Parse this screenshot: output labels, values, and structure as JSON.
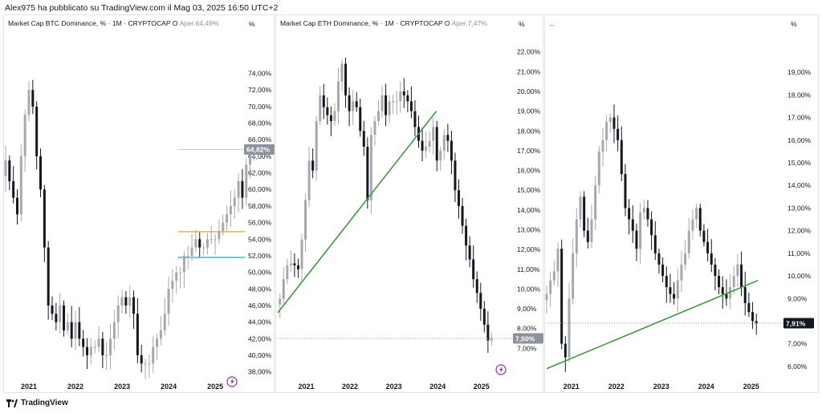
{
  "header": {
    "publish_line": "Alex975 ha pubblicato su TradingView.com il Mag 03, 2025 16:50 UTC+2"
  },
  "footer": {
    "brand": "TradingView"
  },
  "colors": {
    "up": "#a6a8ad",
    "down": "#131722",
    "grid_label": "#131722",
    "trend": "#3d9a3d",
    "orange": "#f5a623",
    "cyan": "#1bc8c8",
    "purple": "#9c27b0"
  },
  "panels": [
    {
      "legend_main": "Market Cap BTC Dominance, % · 1M · CRYPTOCAP",
      "legend_ohlc": "O ",
      "legend_value": "Aper.64,49%",
      "pct_label": "%",
      "price_badge": "64,82%",
      "icon": "lightning-icon"
    },
    {
      "legend_main": "Market Cap ETH Dominance, % · 1M · CRYPTOCAP",
      "legend_ohlc": "O ",
      "legend_value": "Aper.7,47%",
      "pct_label": "%",
      "price_badge": "7,50%",
      "icon": "lightning-icon"
    },
    {
      "legend_main": "...",
      "legend_ohlc": "",
      "legend_value": "",
      "pct_label": "%",
      "price_badge": "7,91%",
      "icon": ""
    }
  ],
  "chart_data": [
    {
      "type": "candlestick",
      "title": "Market Cap BTC Dominance, % · 1M · CRYPTOCAP",
      "ylabel": "%",
      "ylim": [
        37.0,
        78.5
      ],
      "y_ticks": [
        "38,00%",
        "40,00%",
        "42,00%",
        "44,00%",
        "46,00%",
        "48,00%",
        "50,00%",
        "52,00%",
        "54,00%",
        "56,00%",
        "58,00%",
        "60,00%",
        "62,00%",
        "64,00%",
        "66,00%",
        "68,00%",
        "70,00%",
        "72,00%",
        "74,00%"
      ],
      "y_tick_values": [
        38,
        40,
        42,
        44,
        46,
        48,
        50,
        52,
        54,
        56,
        58,
        60,
        62,
        64,
        66,
        68,
        70,
        72,
        74
      ],
      "x_ticks": [
        "2021",
        "2022",
        "2023",
        "2024",
        "2025"
      ],
      "x_tick_values": [
        2021,
        2022,
        2023,
        2024,
        2025
      ],
      "x_range": [
        2020.5,
        2025.6
      ],
      "last_price": 64.82,
      "hlines": [
        {
          "value": 54.9,
          "color_key": "orange"
        },
        {
          "value": 51.8,
          "color_key": "cyan"
        }
      ],
      "closes": [
        63.5,
        61,
        59,
        57,
        64,
        69,
        72,
        70,
        64,
        60,
        53,
        46,
        45,
        44,
        46,
        43,
        44,
        42,
        44,
        42,
        41,
        40,
        41,
        41,
        42,
        40,
        40,
        42,
        44,
        46,
        47,
        46,
        47,
        45,
        40,
        39,
        39,
        39,
        41,
        42,
        43,
        45,
        48,
        49,
        50,
        50,
        52,
        52,
        53,
        54,
        53,
        53,
        54,
        54,
        54,
        55,
        56,
        57,
        58,
        59,
        61,
        59,
        63,
        64,
        64.8
      ],
      "x_start": 2020.5,
      "x_step": 0.0833
    },
    {
      "type": "candlestick",
      "title": "Market Cap ETH Dominance, % · 1M · CRYPTOCAP",
      "ylabel": "%",
      "ylim": [
        6.0,
        22.8
      ],
      "y_ticks": [
        "7,00%",
        "8,00%",
        "9,00%",
        "10,00%",
        "11,00%",
        "12,00%",
        "13,00%",
        "14,00%",
        "15,00%",
        "16,00%",
        "17,00%",
        "18,00%",
        "19,00%",
        "20,00%",
        "21,00%",
        "22,00%"
      ],
      "y_tick_values": [
        7,
        8,
        9,
        10,
        11,
        12,
        13,
        14,
        15,
        16,
        17,
        18,
        19,
        20,
        21,
        22
      ],
      "x_ticks": [
        "2021",
        "2022",
        "2023",
        "2024",
        "2025"
      ],
      "x_tick_values": [
        2021,
        2022,
        2023,
        2024,
        2025
      ],
      "x_range": [
        2020.35,
        2025.7
      ],
      "last_price": 7.5,
      "trendline": {
        "from": [
          2020.35,
          8.8
        ],
        "to": [
          2023.97,
          19.0
        ]
      },
      "closes": [
        9.5,
        10.5,
        11.2,
        11.3,
        11.2,
        11.0,
        12.5,
        14.5,
        16.5,
        16.0,
        18.5,
        19.8,
        19.2,
        18.8,
        18.5,
        19.0,
        20.5,
        21.4,
        19.8,
        19.0,
        19.5,
        19.2,
        18.0,
        17.2,
        14.5,
        17.8,
        18.5,
        19.0,
        19.8,
        18.8,
        19.5,
        19.5,
        19.5,
        20.0,
        19.8,
        19.5,
        19.0,
        18.2,
        17.5,
        17.0,
        17.2,
        17.5,
        18.2,
        16.5,
        17.0,
        17.8,
        17.5,
        16.5,
        15.0,
        14.2,
        13.2,
        12.2,
        11.5,
        10.5,
        9.8,
        9.0,
        8.2,
        7.4,
        7.5
      ],
      "x_start": 2020.4,
      "x_step": 0.0833
    },
    {
      "type": "candlestick",
      "title": "",
      "ylabel": "%",
      "ylim": [
        5.5,
        20.6
      ],
      "y_ticks": [
        "6,00%",
        "7,00%",
        "8,00%",
        "9,00%",
        "10,00%",
        "11,00%",
        "12,00%",
        "13,00%",
        "14,00%",
        "15,00%",
        "16,00%",
        "17,00%",
        "18,00%",
        "19,00%"
      ],
      "y_tick_values": [
        6,
        7,
        8,
        9,
        10,
        11,
        12,
        13,
        14,
        15,
        16,
        17,
        18,
        19
      ],
      "x_ticks": [
        "2021",
        "2022",
        "2023",
        "2024",
        "2025"
      ],
      "x_tick_values": [
        2021,
        2022,
        2023,
        2024,
        2025
      ],
      "x_range": [
        2020.45,
        2025.7
      ],
      "last_price": 7.91,
      "trendline": {
        "from": [
          2020.45,
          5.9
        ],
        "to": [
          2025.15,
          9.8
        ]
      },
      "closes": [
        9.2,
        9.8,
        10.2,
        11.2,
        7.0,
        6.4,
        9.0,
        11.0,
        12.5,
        13.5,
        12.0,
        11.5,
        12.5,
        14.0,
        15.5,
        16.0,
        16.8,
        17.0,
        16.5,
        16.0,
        14.5,
        13.0,
        12.5,
        12.0,
        11.2,
        12.8,
        13.0,
        12.5,
        11.8,
        11.0,
        10.5,
        10.0,
        9.5,
        9.2,
        9.0,
        9.8,
        10.5,
        11.0,
        12.0,
        12.5,
        13.0,
        12.0,
        11.5,
        11.0,
        10.5,
        10.0,
        9.5,
        9.2,
        9.0,
        9.5,
        10.0,
        10.5,
        9.5,
        8.8,
        8.4,
        8.0,
        7.9
      ],
      "x_start": 2020.45,
      "x_step": 0.0833
    }
  ]
}
